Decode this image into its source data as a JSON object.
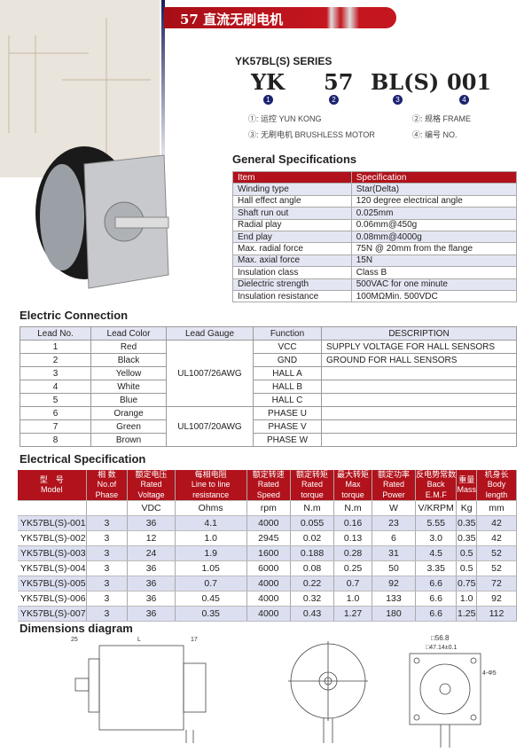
{
  "banner": {
    "title": "57 直流无刷电机"
  },
  "series": {
    "title": "YK57BL(S)   SERIES",
    "codes": [
      "YK",
      "57",
      "BL(S)",
      "001"
    ],
    "numbers": [
      "1",
      "2",
      "3",
      "4"
    ],
    "legend": [
      "①: 运控  YUN KONG",
      "②: 规格  FRAME",
      "③: 无刷电机  BRUSHLESS MOTOR",
      "④: 编号  NO."
    ]
  },
  "general": {
    "heading": "General Specifications",
    "header": [
      "Item",
      "Specification"
    ],
    "rows": [
      [
        "Winding type",
        "Star(Delta)"
      ],
      [
        "Hall effect angle",
        "120 degree electrical angle"
      ],
      [
        "Shaft run out",
        "0.025mm"
      ],
      [
        "Radial play",
        "0.06mm@450g"
      ],
      [
        "End play",
        "0.08mm@4000g"
      ],
      [
        "Max. radial force",
        "75N @ 20mm from the flange"
      ],
      [
        "Max. axial force",
        "15N"
      ],
      [
        "Insulation class",
        "Class B"
      ],
      [
        "Dielectric strength",
        "500VAC for one minute"
      ],
      [
        "Insulation resistance",
        "100MΩMin. 500VDC"
      ]
    ]
  },
  "connection": {
    "heading": "Electric Connection",
    "header": [
      "Lead No.",
      "Lead Color",
      "Lead Gauge",
      "Function",
      "DESCRIPTION"
    ],
    "gauges": [
      "UL1007/26AWG",
      "UL1007/20AWG"
    ],
    "rows": [
      [
        "1",
        "Red",
        "VCC",
        "SUPPLY VOLTAGE FOR HALL SENSORS"
      ],
      [
        "2",
        "Black",
        "GND",
        "GROUND FOR HALL SENSORS"
      ],
      [
        "3",
        "Yellow",
        "HALL A",
        ""
      ],
      [
        "4",
        "White",
        "HALL B",
        ""
      ],
      [
        "5",
        "Blue",
        "HALL C",
        ""
      ],
      [
        "6",
        "Orange",
        "PHASE U",
        ""
      ],
      [
        "7",
        "Green",
        "PHASE V",
        ""
      ],
      [
        "8",
        "Brown",
        "PHASE W",
        ""
      ]
    ]
  },
  "electrical": {
    "heading": "Electrical Specification",
    "header": [
      [
        "型　号",
        "Model"
      ],
      [
        "相 数",
        "No.of Phase"
      ],
      [
        "额定电压",
        "Rated Voltage"
      ],
      [
        "每相电阻",
        "Line to line resistance"
      ],
      [
        "额定转速",
        "Rated Speed"
      ],
      [
        "额定转矩",
        "Rated torque"
      ],
      [
        "最大转矩",
        "Max torque"
      ],
      [
        "额定功率",
        "Rated Power"
      ],
      [
        "反电势常数",
        "Back E.M.F"
      ],
      [
        "重量",
        "Mass"
      ],
      [
        "机身长",
        "Body length"
      ]
    ],
    "units": [
      "",
      "",
      "VDC",
      "Ohms",
      "rpm",
      "N.m",
      "N.m",
      "W",
      "V/KRPM",
      "Kg",
      "mm"
    ],
    "rows": [
      [
        "YK57BL(S)-001",
        "3",
        "36",
        "4.1",
        "4000",
        "0.055",
        "0.16",
        "23",
        "5.55",
        "0.35",
        "42"
      ],
      [
        "YK57BL(S)-002",
        "3",
        "12",
        "1.0",
        "2945",
        "0.02",
        "0.13",
        "6",
        "3.0",
        "0.35",
        "42"
      ],
      [
        "YK57BL(S)-003",
        "3",
        "24",
        "1.9",
        "1600",
        "0.188",
        "0.28",
        "31",
        "4.5",
        "0.5",
        "52"
      ],
      [
        "YK57BL(S)-004",
        "3",
        "36",
        "1.05",
        "6000",
        "0.08",
        "0.25",
        "50",
        "3.35",
        "0.5",
        "52"
      ],
      [
        "YK57BL(S)-005",
        "3",
        "36",
        "0.7",
        "4000",
        "0.22",
        "0.7",
        "92",
        "6.6",
        "0.75",
        "72"
      ],
      [
        "YK57BL(S)-006",
        "3",
        "36",
        "0.45",
        "4000",
        "0.32",
        "1.0",
        "133",
        "6.6",
        "1.0",
        "92"
      ],
      [
        "YK57BL(S)-007",
        "3",
        "36",
        "0.35",
        "4000",
        "0.43",
        "1.27",
        "180",
        "6.6",
        "1.25",
        "112"
      ]
    ]
  },
  "dimensions": {
    "heading": "Dimensions diagram",
    "labels": [
      "25",
      "L",
      "17",
      "□56.8",
      "□47.14±0.1",
      "4-Φ5"
    ]
  }
}
